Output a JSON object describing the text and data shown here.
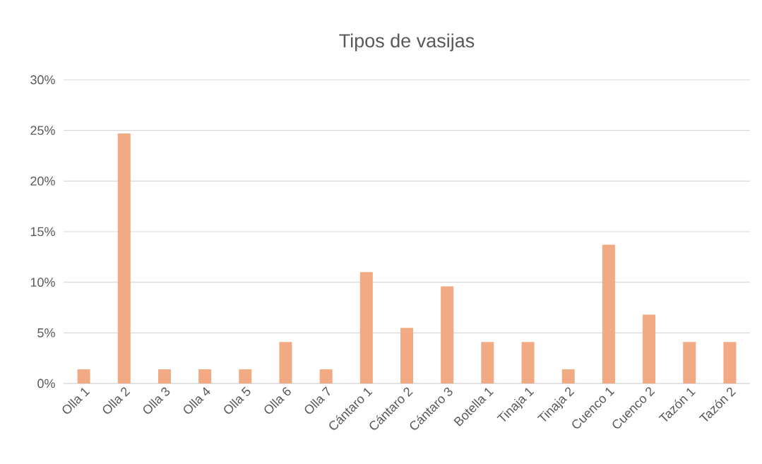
{
  "chart_data": {
    "type": "bar",
    "title": "Tipos de vasijas",
    "categories": [
      "Olla 1",
      "Olla 2",
      "Olla 3",
      "Olla 4",
      "Olla 5",
      "Olla 6",
      "Olla 7",
      "Cántaro 1",
      "Cántaro 2",
      "Cántaro 3",
      "Botella 1",
      "Tinaja 1",
      "Tinaja 2",
      "Cuenco 1",
      "Cuenco 2",
      "Tazón 1",
      "Tazón 2"
    ],
    "values": [
      1.4,
      24.7,
      1.4,
      1.4,
      1.4,
      4.1,
      1.4,
      11.0,
      5.5,
      9.6,
      4.1,
      4.1,
      1.4,
      13.7,
      6.8,
      4.1,
      4.1
    ],
    "color": "#f1aa84",
    "ylim": [
      0,
      30
    ],
    "yticks": [
      {
        "value": 0,
        "label": "0%"
      },
      {
        "value": 5,
        "label": "5%"
      },
      {
        "value": 10,
        "label": "10%"
      },
      {
        "value": 15,
        "label": "15%"
      },
      {
        "value": 20,
        "label": "20%"
      },
      {
        "value": 25,
        "label": "25%"
      },
      {
        "value": 30,
        "label": "30%"
      }
    ],
    "grid": "y"
  }
}
